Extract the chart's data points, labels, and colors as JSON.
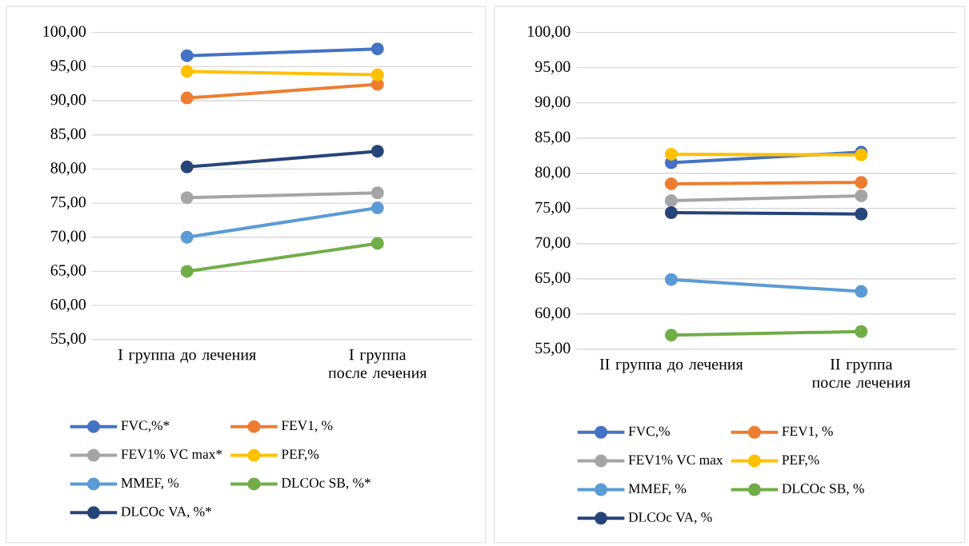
{
  "chart_data": [
    {
      "type": "line",
      "categories": [
        "I группа до лечения",
        "I  группа после лечения"
      ],
      "ylim": [
        55,
        100
      ],
      "yticks": [
        {
          "value": 55,
          "label": "55,00"
        },
        {
          "value": 60,
          "label": "60,00"
        },
        {
          "value": 65,
          "label": "65,00"
        },
        {
          "value": 70,
          "label": "70,00"
        },
        {
          "value": 75,
          "label": "75,00"
        },
        {
          "value": 80,
          "label": "80,00"
        },
        {
          "value": 85,
          "label": "85,00"
        },
        {
          "value": 90,
          "label": "90,00"
        },
        {
          "value": 95,
          "label": "95,00"
        },
        {
          "value": 100,
          "label": "100,00"
        }
      ],
      "grid": "y",
      "legend": "bottom",
      "marker": "circle",
      "line_style": "solid",
      "series": [
        {
          "name": "FVC,%*",
          "color": "#4472c4",
          "values": [
            96.6,
            97.6
          ]
        },
        {
          "name": "FEV1, %",
          "color": "#ed7d31",
          "values": [
            90.4,
            92.4
          ]
        },
        {
          "name": "FEV1% VC max*",
          "color": "#a5a5a5",
          "values": [
            75.8,
            76.5
          ]
        },
        {
          "name": "PEF,%",
          "color": "#ffc000",
          "values": [
            94.3,
            93.8
          ]
        },
        {
          "name": "MMEF, %",
          "color": "#5b9bd5",
          "values": [
            70.0,
            74.3
          ]
        },
        {
          "name": "DLCOc SB, %*",
          "color": "#70ad47",
          "values": [
            65.0,
            69.1
          ]
        },
        {
          "name": "DLCOc VA, %*",
          "color": "#264478",
          "values": [
            80.3,
            82.6
          ]
        }
      ]
    },
    {
      "type": "line",
      "categories": [
        "II  группа до лечения",
        "II группа после лечения"
      ],
      "ylim": [
        55,
        100
      ],
      "yticks": [
        {
          "value": 55,
          "label": "55,00"
        },
        {
          "value": 60,
          "label": "60,00"
        },
        {
          "value": 65,
          "label": "65,00"
        },
        {
          "value": 70,
          "label": "70,00"
        },
        {
          "value": 75,
          "label": "75,00"
        },
        {
          "value": 80,
          "label": "80,00"
        },
        {
          "value": 85,
          "label": "85,00"
        },
        {
          "value": 90,
          "label": "90,00"
        },
        {
          "value": 95,
          "label": "95,00"
        },
        {
          "value": 100,
          "label": "100,00"
        }
      ],
      "grid": "y",
      "legend": "bottom",
      "marker": "circle",
      "line_style": "solid",
      "series": [
        {
          "name": "FVC,%",
          "color": "#4472c4",
          "values": [
            81.5,
            83.0
          ]
        },
        {
          "name": "FEV1, %",
          "color": "#ed7d31",
          "values": [
            78.5,
            78.7
          ]
        },
        {
          "name": "FEV1% VC max",
          "color": "#a5a5a5",
          "values": [
            76.1,
            76.8
          ]
        },
        {
          "name": "PEF,%",
          "color": "#ffc000",
          "values": [
            82.7,
            82.6
          ]
        },
        {
          "name": "MMEF, %",
          "color": "#5b9bd5",
          "values": [
            64.9,
            63.2
          ]
        },
        {
          "name": "DLCOc SB, %",
          "color": "#70ad47",
          "values": [
            57.0,
            57.5
          ]
        },
        {
          "name": "DLCOc VA, %",
          "color": "#264478",
          "values": [
            74.4,
            74.2
          ]
        }
      ]
    }
  ]
}
